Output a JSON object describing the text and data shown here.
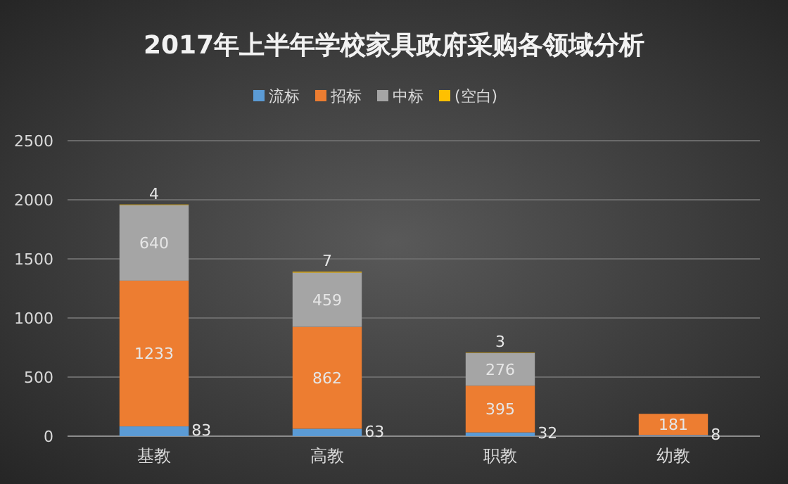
{
  "chart_data": {
    "type": "bar",
    "title": "2017年上半年学校家具政府采购各领域分析",
    "categories": [
      "基教",
      "高教",
      "职教",
      "幼教"
    ],
    "stacked": true,
    "series": [
      {
        "name": "流标",
        "color": "#5b9bd5",
        "values": [
          83,
          63,
          32,
          8
        ]
      },
      {
        "name": "招标",
        "color": "#ed7d31",
        "values": [
          1233,
          862,
          395,
          181
        ]
      },
      {
        "name": "中标",
        "color": "#a5a5a5",
        "values": [
          640,
          459,
          276,
          null
        ]
      },
      {
        "name": "(空白)",
        "color": "#ffc000",
        "values": [
          4,
          7,
          3,
          null
        ]
      }
    ],
    "ylim": [
      0,
      2500
    ],
    "yticks": [
      0,
      500,
      1000,
      1500,
      2000,
      2500
    ],
    "grid": "y",
    "legend": "top",
    "data_labels": true
  }
}
